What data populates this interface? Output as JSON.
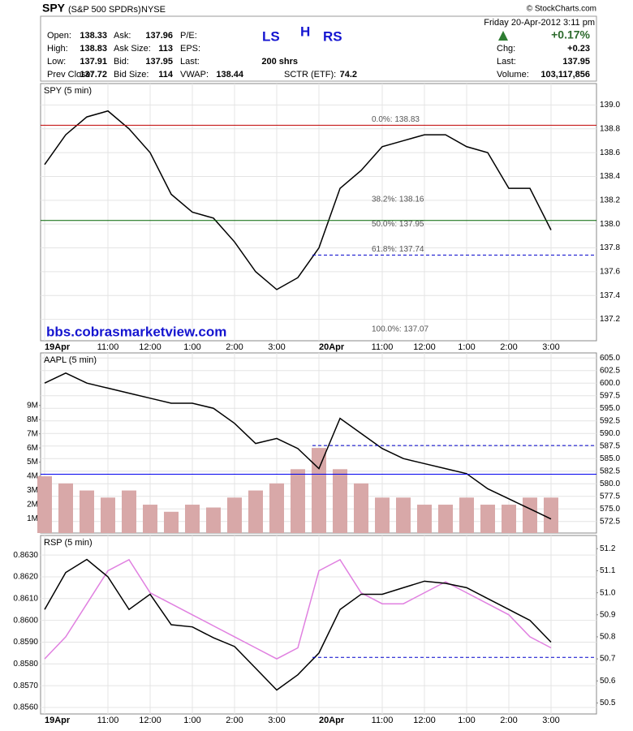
{
  "header": {
    "symbol": "SPY",
    "name": "(S&P 500 SPDRs)",
    "exchange": "NYSE",
    "source": "© StockCharts.com",
    "date": "Friday  20-Apr-2012  3:11 pm",
    "change_pct": "+0.17%",
    "marks": [
      "LS",
      "H",
      "RS"
    ],
    "quote": [
      [
        {
          "label": "Open:",
          "value": "138.33"
        },
        {
          "label": "Ask:",
          "value": "137.96"
        },
        {
          "label": "P/E:"
        }
      ],
      [
        {
          "label": "High:",
          "value": "138.83"
        },
        {
          "label": "Ask Size:",
          "value": "113"
        },
        {
          "label": "EPS:"
        }
      ],
      [
        {
          "label": "Low:",
          "value": "137.91"
        },
        {
          "label": "Bid:",
          "value": "137.95"
        },
        {
          "label": "Last:",
          "value": "200 shrs"
        }
      ],
      [
        {
          "label": "Prev Close:",
          "value": "137.72"
        },
        {
          "label": "Bid Size:",
          "value": "114"
        },
        {
          "label": "VWAP:",
          "value": "138.44"
        },
        {
          "label": "SCTR (ETF):",
          "value": "74.2"
        }
      ]
    ],
    "summary": [
      {
        "label": "Chg:",
        "value": "+0.23"
      },
      {
        "label": "Last:",
        "value": "137.95"
      },
      {
        "label": "Volume:",
        "value": "103,117,856"
      }
    ]
  },
  "chart_data": [
    {
      "type": "line",
      "title": "SPY (5 min)",
      "y_side": "right",
      "watermark": "bbs.cobrasmarketview.com",
      "categories": [
        "19Apr",
        null,
        null,
        "11:00",
        null,
        "12:00",
        null,
        "1:00",
        null,
        "2:00",
        null,
        "3:00",
        null,
        "20Apr",
        null,
        null,
        "11:00",
        null,
        "12:00",
        null,
        "1:00",
        null,
        "2:00",
        null,
        "3:00"
      ],
      "values": [
        138.5,
        138.75,
        138.9,
        138.95,
        138.8,
        138.6,
        138.25,
        138.1,
        138.05,
        137.85,
        137.6,
        137.45,
        137.55,
        137.8,
        138.3,
        138.45,
        138.65,
        138.7,
        138.75,
        138.75,
        138.65,
        138.6,
        138.3,
        138.3,
        137.95
      ],
      "color": "#000000",
      "ylim": [
        137.02,
        139.18
      ],
      "yticks": [
        137.2,
        137.4,
        137.6,
        137.8,
        {
          "value": 138,
          "label": "138.0"
        },
        138.2,
        138.4,
        138.6,
        138.8,
        {
          "value": 139,
          "label": "139.0"
        }
      ],
      "grid": true,
      "hlines": [
        {
          "value": 138.83,
          "color": "#c00000"
        },
        {
          "value": 138.03,
          "color": "#006400"
        },
        {
          "value": 137.74,
          "color": "#0000cc",
          "dash": true
        }
      ],
      "annotations": [
        {
          "text": "0.0%: 138.83",
          "value": 138.83
        },
        {
          "text": "38.2%: 138.16",
          "value": 138.16
        },
        {
          "text": "50.0%: 137.95",
          "value": 137.95
        },
        {
          "text": "61.8%: 137.74",
          "value": 137.74
        },
        {
          "text": "100.0%: 137.07",
          "value": 137.07
        }
      ]
    },
    {
      "type": "line",
      "title": "AAPL (5 min)",
      "y_side": "right",
      "ylim": [
        570.2,
        606
      ],
      "yticks": [
        572.5,
        {
          "value": 575,
          "label": "575.0"
        },
        577.5,
        {
          "value": 580,
          "label": "580.0"
        },
        582.5,
        {
          "value": 585,
          "label": "585.0"
        },
        587.5,
        {
          "value": 590,
          "label": "590.0"
        },
        592.5,
        {
          "value": 595,
          "label": "595.0"
        },
        597.5,
        {
          "value": 600,
          "label": "600.0"
        },
        602.5,
        {
          "value": 605,
          "label": "605.0"
        }
      ],
      "grid": true,
      "y2lim": [
        0,
        12700000
      ],
      "y2ticks": [
        {
          "value": 1000000,
          "label": "1M"
        },
        {
          "value": 2000000,
          "label": "2M"
        },
        {
          "value": 3000000,
          "label": "3M"
        },
        {
          "value": 4000000,
          "label": "4M"
        },
        {
          "value": 5000000,
          "label": "5M"
        },
        {
          "value": 6000000,
          "label": "6M"
        },
        {
          "value": 7000000,
          "label": "7M"
        },
        {
          "value": 8000000,
          "label": "8M"
        },
        {
          "value": 9000000,
          "label": "9M"
        }
      ],
      "series": [
        {
          "type": "bar",
          "axis": "y2",
          "color": "#d8a8a8",
          "values": [
            4000000,
            3500000,
            3000000,
            2500000,
            3000000,
            2000000,
            1500000,
            2000000,
            1800000,
            2500000,
            3000000,
            3500000,
            4500000,
            6000000,
            4500000,
            3500000,
            2500000,
            2500000,
            2000000,
            2000000,
            2500000,
            2000000,
            2000000,
            2500000,
            2500000
          ]
        },
        {
          "color": "#000000",
          "values": [
            600,
            602,
            600,
            599,
            598,
            597,
            596,
            596,
            595,
            592,
            588,
            589,
            587,
            583,
            593,
            590,
            587,
            585,
            584,
            583,
            582,
            579,
            577,
            575,
            573
          ]
        }
      ],
      "hlines": [
        {
          "value": 587.6,
          "color": "#0000cc",
          "dash": true
        },
        {
          "value": 581.9,
          "color": "#0000ee"
        }
      ]
    },
    {
      "type": "line",
      "title": "RSP (5 min)",
      "y_side": "left",
      "categories": [
        "19Apr",
        null,
        null,
        "11:00",
        null,
        "12:00",
        null,
        "1:00",
        null,
        "2:00",
        null,
        "3:00",
        null,
        "20Apr",
        null,
        null,
        "11:00",
        null,
        "12:00",
        null,
        "1:00",
        null,
        "2:00",
        null,
        "3:00"
      ],
      "ylim": [
        0.8557,
        0.8639
      ],
      "yticks": [
        {
          "value": 0.856,
          "label": "0.8560"
        },
        {
          "value": 0.857,
          "label": "0.8570"
        },
        {
          "value": 0.858,
          "label": "0.8580"
        },
        {
          "value": 0.859,
          "label": "0.8590"
        },
        {
          "value": 0.86,
          "label": "0.8600"
        },
        {
          "value": 0.861,
          "label": "0.8610"
        },
        {
          "value": 0.862,
          "label": "0.8620"
        },
        {
          "value": 0.863,
          "label": "0.8630"
        }
      ],
      "grid": true,
      "y2lim": [
        50.45,
        51.26
      ],
      "y2ticks": [
        50.5,
        50.6,
        50.7,
        50.8,
        50.9,
        {
          "value": 51,
          "label": "51.0"
        },
        51.1,
        51.2
      ],
      "series": [
        {
          "axis": "y2",
          "color": "#e080e0",
          "values": [
            50.7,
            50.8,
            50.95,
            51.1,
            51.15,
            51,
            50.95,
            50.9,
            50.85,
            50.8,
            50.75,
            50.7,
            50.75,
            51.1,
            51.15,
            51,
            50.95,
            50.95,
            51,
            51.05,
            51,
            50.95,
            50.9,
            50.8,
            50.75
          ]
        },
        {
          "color": "#000000",
          "values": [
            0.8605,
            0.8622,
            0.8628,
            0.862,
            0.8605,
            0.8612,
            0.8598,
            0.8597,
            0.8592,
            0.8588,
            0.8578,
            0.8568,
            0.8575,
            0.8585,
            0.8605,
            0.8612,
            0.8612,
            0.8615,
            0.8618,
            0.8617,
            0.8615,
            0.861,
            0.8605,
            0.86,
            0.859
          ]
        }
      ],
      "hlines": [
        {
          "value": 0.8583,
          "color": "#0000cc",
          "dash": true
        }
      ]
    }
  ]
}
